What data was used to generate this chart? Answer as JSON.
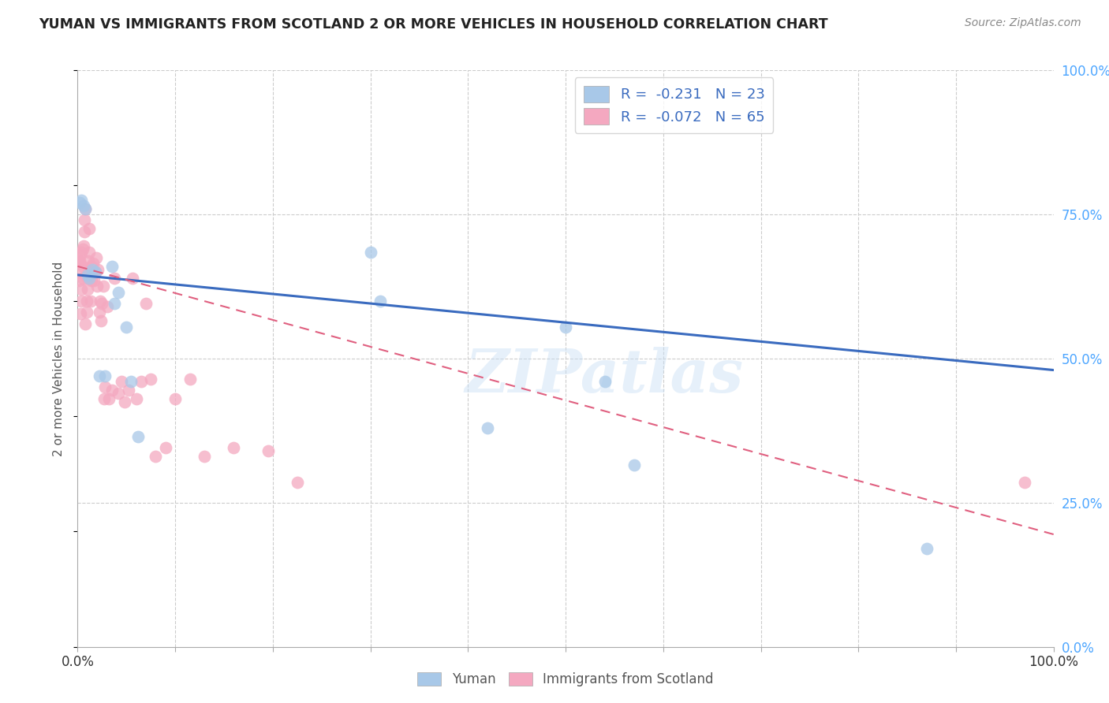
{
  "title": "YUMAN VS IMMIGRANTS FROM SCOTLAND 2 OR MORE VEHICLES IN HOUSEHOLD CORRELATION CHART",
  "source": "Source: ZipAtlas.com",
  "ylabel": "2 or more Vehicles in Household",
  "xlim": [
    0.0,
    1.0
  ],
  "ylim": [
    0.0,
    1.0
  ],
  "legend_blue_r": "-0.231",
  "legend_blue_n": "23",
  "legend_pink_r": "-0.072",
  "legend_pink_n": "65",
  "blue_color": "#a8c8e8",
  "pink_color": "#f4a8c0",
  "blue_line_color": "#3a6bbf",
  "pink_line_color": "#e06080",
  "watermark": "ZIPatlas",
  "blue_scatter_x": [
    0.002,
    0.004,
    0.006,
    0.008,
    0.01,
    0.012,
    0.015,
    0.018,
    0.022,
    0.028,
    0.035,
    0.038,
    0.042,
    0.05,
    0.055,
    0.062,
    0.3,
    0.31,
    0.42,
    0.5,
    0.54,
    0.57,
    0.87
  ],
  "blue_scatter_y": [
    0.77,
    0.775,
    0.765,
    0.76,
    0.645,
    0.64,
    0.655,
    0.65,
    0.47,
    0.47,
    0.66,
    0.595,
    0.615,
    0.555,
    0.46,
    0.365,
    0.685,
    0.6,
    0.38,
    0.555,
    0.46,
    0.315,
    0.17
  ],
  "pink_scatter_x": [
    0.001,
    0.002,
    0.002,
    0.003,
    0.004,
    0.004,
    0.005,
    0.005,
    0.006,
    0.007,
    0.007,
    0.008,
    0.008,
    0.009,
    0.009,
    0.01,
    0.01,
    0.011,
    0.011,
    0.012,
    0.012,
    0.013,
    0.014,
    0.014,
    0.015,
    0.016,
    0.017,
    0.018,
    0.019,
    0.02,
    0.021,
    0.022,
    0.023,
    0.024,
    0.025,
    0.026,
    0.027,
    0.028,
    0.03,
    0.032,
    0.035,
    0.038,
    0.042,
    0.045,
    0.048,
    0.052,
    0.056,
    0.06,
    0.065,
    0.07,
    0.075,
    0.08,
    0.09,
    0.1,
    0.115,
    0.13,
    0.16,
    0.195,
    0.225,
    0.97,
    0.001,
    0.002,
    0.003,
    0.004,
    0.005
  ],
  "pink_scatter_y": [
    0.635,
    0.65,
    0.665,
    0.578,
    0.6,
    0.62,
    0.64,
    0.66,
    0.695,
    0.72,
    0.74,
    0.76,
    0.56,
    0.58,
    0.6,
    0.62,
    0.64,
    0.655,
    0.67,
    0.685,
    0.725,
    0.6,
    0.635,
    0.66,
    0.65,
    0.665,
    0.635,
    0.65,
    0.675,
    0.625,
    0.655,
    0.58,
    0.6,
    0.565,
    0.595,
    0.625,
    0.43,
    0.45,
    0.59,
    0.43,
    0.445,
    0.64,
    0.44,
    0.46,
    0.425,
    0.445,
    0.64,
    0.43,
    0.46,
    0.595,
    0.465,
    0.33,
    0.345,
    0.43,
    0.465,
    0.33,
    0.345,
    0.34,
    0.285,
    0.285,
    0.67,
    0.67,
    0.68,
    0.685,
    0.69
  ]
}
